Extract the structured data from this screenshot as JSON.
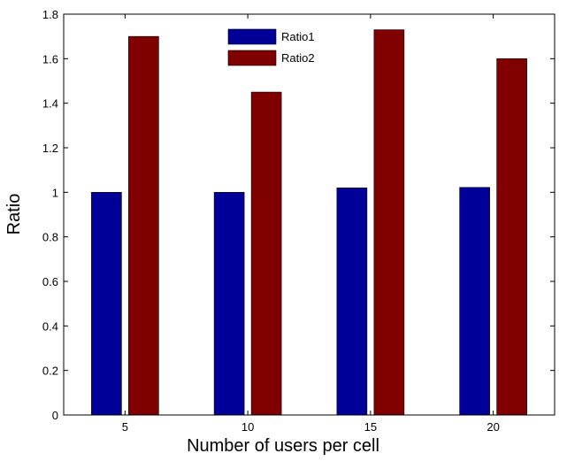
{
  "chart_data": {
    "type": "bar",
    "categories": [
      "5",
      "10",
      "15",
      "20"
    ],
    "series": [
      {
        "name": "Ratio1",
        "values": [
          1.0,
          1.0,
          1.02,
          1.022
        ],
        "color": "#000099"
      },
      {
        "name": "Ratio2",
        "values": [
          1.7,
          1.45,
          1.73,
          1.6
        ],
        "color": "#800000"
      }
    ],
    "title": "",
    "xlabel": "Number of users per cell",
    "ylabel": "Ratio",
    "ylim": [
      0,
      1.8
    ],
    "yticks": [
      "0",
      "0.2",
      "0.4",
      "0.6",
      "0.8",
      "1",
      "1.2",
      "1.4",
      "1.6",
      "1.8"
    ],
    "grid": false,
    "legend": {
      "position": "top-center"
    }
  }
}
